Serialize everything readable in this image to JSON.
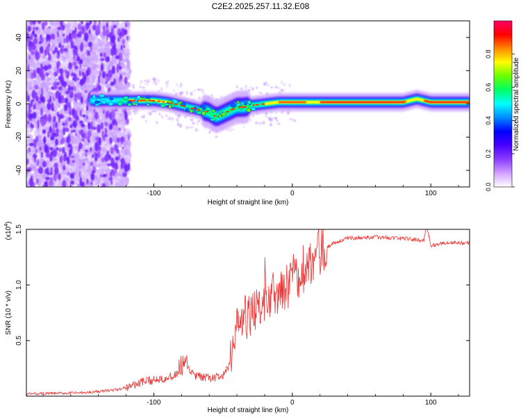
{
  "title": "C2E2.2025.257.11.32.E08",
  "chart_data": [
    {
      "type": "heatmap",
      "name": "spectrogram",
      "xlabel": "Height of straight line (km)",
      "ylabel": "Frequency (Hz)",
      "xlim": [
        -192,
        128
      ],
      "ylim": [
        -50,
        50
      ],
      "x_ticks": [
        -100,
        0,
        100
      ],
      "y_ticks": [
        -40,
        -20,
        0,
        20,
        40
      ],
      "x_tick_labels": [
        "-100",
        "0",
        "100"
      ],
      "y_tick_labels": [
        "-40",
        "-20",
        "0",
        "20",
        "40"
      ],
      "colorbar": {
        "label": "Normalized spectral amplitude",
        "range": [
          0,
          1
        ],
        "ticks": [
          0.0,
          0.2,
          0.4,
          0.6,
          0.8
        ],
        "tick_labels": [
          "0.0",
          "0.2",
          "0.4",
          "0.6",
          "0.8"
        ],
        "colors": [
          "#ffffff",
          "#d2a0ff",
          "#8a3cff",
          "#4a00ff",
          "#0000ff",
          "#0088ff",
          "#00ffff",
          "#00ff66",
          "#66ff00",
          "#ffff00",
          "#ff8800",
          "#ff0000",
          "#ff0066"
        ]
      },
      "ridge": {
        "x": [
          -140,
          -120,
          -100,
          -90,
          -80,
          -70,
          -60,
          -55,
          -50,
          -45,
          -40,
          -35,
          -30,
          -20,
          -10,
          0,
          20,
          40,
          60,
          80,
          90,
          100,
          128
        ],
        "freq": [
          2,
          2,
          2,
          1,
          -1,
          -3,
          -5,
          -8,
          -6,
          -4,
          -2,
          -2,
          -1,
          0,
          1,
          1,
          1,
          1,
          1,
          1,
          3,
          1,
          1
        ]
      }
    },
    {
      "type": "line",
      "name": "snr",
      "xlabel": "Height of straight line (km)",
      "ylabel": "SNR (10 * v/v)",
      "scale_label": "(x10",
      "scale_exponent": "4",
      "xlim": [
        -192,
        128
      ],
      "ylim": [
        0,
        1.5
      ],
      "x_ticks": [
        -100,
        0,
        100
      ],
      "y_ticks": [
        0.5,
        1.0,
        1.5
      ],
      "x_tick_labels": [
        "-100",
        "0",
        "100"
      ],
      "y_tick_labels": [
        "0.5",
        "1.0",
        "1.5"
      ],
      "color": "#ee3333",
      "trend": {
        "x": [
          -192,
          -150,
          -125,
          -110,
          -95,
          -85,
          -78,
          -70,
          -60,
          -50,
          -45,
          -40,
          -35,
          -30,
          -25,
          -20,
          -15,
          -10,
          -5,
          0,
          10,
          20,
          30,
          40,
          60,
          80,
          95,
          97,
          100,
          110,
          128
        ],
        "y": [
          0.02,
          0.03,
          0.06,
          0.12,
          0.16,
          0.18,
          0.28,
          0.18,
          0.16,
          0.18,
          0.28,
          0.62,
          0.7,
          0.68,
          0.78,
          0.85,
          0.9,
          0.95,
          0.98,
          1.05,
          1.15,
          1.3,
          1.38,
          1.42,
          1.43,
          1.42,
          1.4,
          1.55,
          1.35,
          1.38,
          1.38
        ]
      }
    }
  ]
}
